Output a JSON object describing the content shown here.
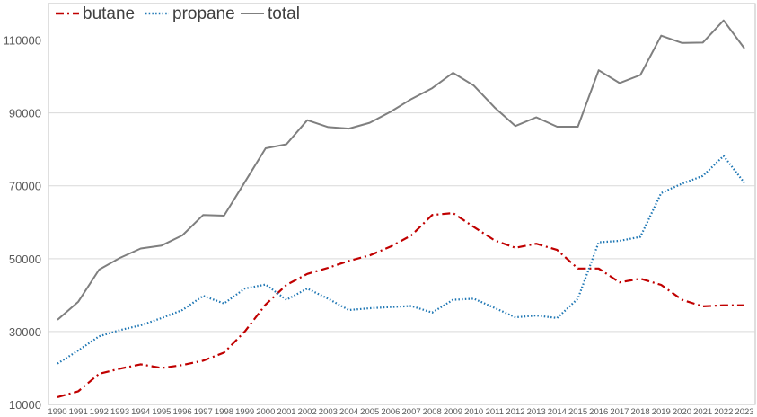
{
  "chart_data": {
    "type": "line",
    "title": "",
    "xlabel": "",
    "ylabel": "",
    "ylim": [
      10000,
      120000
    ],
    "yticks": [
      10000,
      30000,
      50000,
      70000,
      90000,
      110000
    ],
    "grid": true,
    "legend_position": "top-left",
    "categories": [
      "1990",
      "1991",
      "1992",
      "1993",
      "1994",
      "1995",
      "1996",
      "1997",
      "1998",
      "1999",
      "2000",
      "2001",
      "2002",
      "2003",
      "2004",
      "2005",
      "2006",
      "2007",
      "2008",
      "2009",
      "2010",
      "2011",
      "2012",
      "2013",
      "2014",
      "2015",
      "2016",
      "2017",
      "2018",
      "2019",
      "2020",
      "2021",
      "2022",
      "2023"
    ],
    "series": [
      {
        "name": "butane",
        "color": "#c00000",
        "style": "dashdot",
        "values": [
          12000,
          13600,
          18400,
          19800,
          21000,
          20000,
          20800,
          22000,
          24200,
          30000,
          37400,
          42800,
          45800,
          47500,
          49400,
          50900,
          53300,
          56400,
          62000,
          62500,
          58700,
          55000,
          53000,
          54100,
          52400,
          47300,
          47300,
          43500,
          44500,
          42800,
          38700,
          36900,
          37200,
          37200
        ]
      },
      {
        "name": "propane",
        "color": "#1f77b4",
        "style": "dotted",
        "values": [
          21200,
          24800,
          28700,
          30400,
          31700,
          33700,
          35900,
          39800,
          37700,
          41800,
          42900,
          38700,
          41800,
          39000,
          35900,
          36400,
          36700,
          37000,
          35200,
          38700,
          39000,
          36500,
          33900,
          34400,
          33700,
          39000,
          54500,
          54900,
          56000,
          68000,
          70600,
          72700,
          78200,
          70800
        ]
      },
      {
        "name": "total",
        "color": "#7f7f7f",
        "style": "solid",
        "values": [
          33200,
          38200,
          47000,
          50200,
          52800,
          53600,
          56400,
          62000,
          61800,
          71000,
          80300,
          81400,
          88000,
          86100,
          85700,
          87300,
          90300,
          93800,
          96800,
          101000,
          97500,
          91500,
          86400,
          88800,
          86200,
          86200,
          101700,
          98200,
          100400,
          111200,
          109200,
          109300,
          115400,
          107700
        ]
      }
    ]
  }
}
